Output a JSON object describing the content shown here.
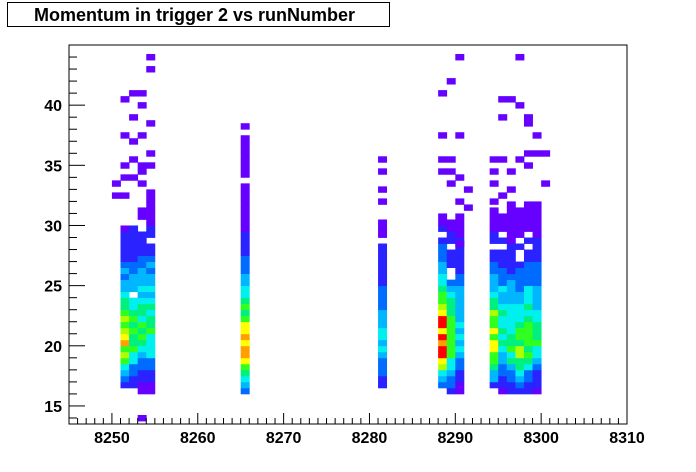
{
  "chart_data": {
    "type": "heatmap",
    "title": "Momentum in trigger 2 vs runNumber",
    "xlabel": "",
    "ylabel": "",
    "xlim": [
      8245,
      8310
    ],
    "ylim": [
      13.5,
      45.0
    ],
    "x_ticks": [
      8250,
      8260,
      8270,
      8280,
      8290,
      8300,
      8310
    ],
    "y_ticks": [
      15,
      20,
      25,
      30,
      35,
      40
    ],
    "x_tick_labels": [
      "8250",
      "8260",
      "8270",
      "8280",
      "8290",
      "8300",
      "8310"
    ],
    "y_tick_labels": [
      "15",
      "20",
      "25",
      "30",
      "35",
      "40"
    ],
    "bin_width": {
      "x": 1.0,
      "y": 0.5
    },
    "grid": false,
    "legend": "none",
    "colormap": [
      "#6600ff",
      "#2a22ff",
      "#006cff",
      "#00b6ff",
      "#00f0f0",
      "#00f080",
      "#30ff20",
      "#b0ff00",
      "#ffff00",
      "#ffa000",
      "#ff0000"
    ],
    "columns": [
      {
        "x": 8251.5,
        "ymin": 16.5,
        "ymax": 30.0,
        "peak": 20.0,
        "intensity": 0.75
      },
      {
        "x": 8252.5,
        "ymin": 16.5,
        "ymax": 30.0,
        "peak": 20.5,
        "intensity": 0.55
      },
      {
        "x": 8253.5,
        "ymin": 16.0,
        "ymax": 32.0,
        "peak": 21.0,
        "intensity": 0.55
      },
      {
        "x": 8254.5,
        "ymin": 16.0,
        "ymax": 33.0,
        "peak": 21.0,
        "intensity": 0.55
      },
      {
        "x": 8265.5,
        "ymin": 16.0,
        "ymax": 38.5,
        "peak": 19.5,
        "intensity": 0.8
      },
      {
        "x": 8281.5,
        "ymin": 16.5,
        "ymax": 30.5,
        "peak": 20.0,
        "intensity": 0.35
      },
      {
        "x": 8288.5,
        "ymin": 16.5,
        "ymax": 31.0,
        "peak": 20.0,
        "intensity": 0.98
      },
      {
        "x": 8289.5,
        "ymin": 16.0,
        "ymax": 31.0,
        "peak": 20.0,
        "intensity": 0.65
      },
      {
        "x": 8290.5,
        "ymin": 16.0,
        "ymax": 31.0,
        "peak": 20.5,
        "intensity": 0.4
      },
      {
        "x": 8294.5,
        "ymin": 16.5,
        "ymax": 31.5,
        "peak": 20.0,
        "intensity": 0.75
      },
      {
        "x": 8295.5,
        "ymin": 16.0,
        "ymax": 31.5,
        "peak": 20.5,
        "intensity": 0.5
      },
      {
        "x": 8296.5,
        "ymin": 16.0,
        "ymax": 32.0,
        "peak": 20.0,
        "intensity": 0.5
      },
      {
        "x": 8297.5,
        "ymin": 16.0,
        "ymax": 32.0,
        "peak": 19.5,
        "intensity": 0.62
      },
      {
        "x": 8298.5,
        "ymin": 16.0,
        "ymax": 32.0,
        "peak": 20.0,
        "intensity": 0.58
      },
      {
        "x": 8299.5,
        "ymin": 16.0,
        "ymax": 32.0,
        "peak": 20.5,
        "intensity": 0.5
      }
    ],
    "sparse_cells": [
      [
        8254.5,
        44.0
      ],
      [
        8254.5,
        43.0
      ],
      [
        8251.5,
        40.5
      ],
      [
        8252.5,
        41.0
      ],
      [
        8253.5,
        41.0
      ],
      [
        8253.5,
        40.0
      ],
      [
        8252.5,
        39.0
      ],
      [
        8251.5,
        37.5
      ],
      [
        8254.5,
        38.5
      ],
      [
        8252.5,
        37.0
      ],
      [
        8253.5,
        37.5
      ],
      [
        8251.5,
        35.0
      ],
      [
        8252.5,
        35.5
      ],
      [
        8253.5,
        35.0
      ],
      [
        8254.5,
        35.0
      ],
      [
        8254.5,
        36.0
      ],
      [
        8251.5,
        34.0
      ],
      [
        8252.5,
        34.0
      ],
      [
        8253.5,
        33.5
      ],
      [
        8250.5,
        33.5
      ],
      [
        8250.5,
        32.5
      ],
      [
        8251.5,
        32.5
      ],
      [
        8253.5,
        34.5
      ],
      [
        8253.5,
        14.0
      ],
      [
        8281.5,
        35.5
      ],
      [
        8281.5,
        34.5
      ],
      [
        8281.5,
        33.0
      ],
      [
        8281.5,
        32.0
      ],
      [
        8290.5,
        44.0
      ],
      [
        8289.5,
        42.0
      ],
      [
        8288.5,
        41.0
      ],
      [
        8288.5,
        37.5
      ],
      [
        8290.5,
        37.5
      ],
      [
        8288.5,
        35.5
      ],
      [
        8289.5,
        35.5
      ],
      [
        8288.5,
        34.5
      ],
      [
        8289.5,
        34.5
      ],
      [
        8289.5,
        33.5
      ],
      [
        8290.5,
        34.0
      ],
      [
        8291.5,
        33.0
      ],
      [
        8290.5,
        32.0
      ],
      [
        8291.5,
        31.5
      ],
      [
        8290.5,
        28.5
      ],
      [
        8297.5,
        44.0
      ],
      [
        8295.5,
        40.5
      ],
      [
        8295.5,
        39.0
      ],
      [
        8296.5,
        40.5
      ],
      [
        8297.5,
        40.0
      ],
      [
        8298.5,
        39.0
      ],
      [
        8298.5,
        38.5
      ],
      [
        8299.5,
        37.5
      ],
      [
        8299.5,
        36.0
      ],
      [
        8300.5,
        36.0
      ],
      [
        8298.5,
        36.0
      ],
      [
        8298.5,
        35.0
      ],
      [
        8297.5,
        35.5
      ],
      [
        8294.5,
        35.5
      ],
      [
        8295.5,
        35.5
      ],
      [
        8294.5,
        34.5
      ],
      [
        8296.5,
        34.5
      ],
      [
        8294.5,
        33.5
      ],
      [
        8300.5,
        33.5
      ],
      [
        8295.5,
        32.5
      ],
      [
        8294.5,
        32.0
      ],
      [
        8296.5,
        33.0
      ]
    ]
  }
}
